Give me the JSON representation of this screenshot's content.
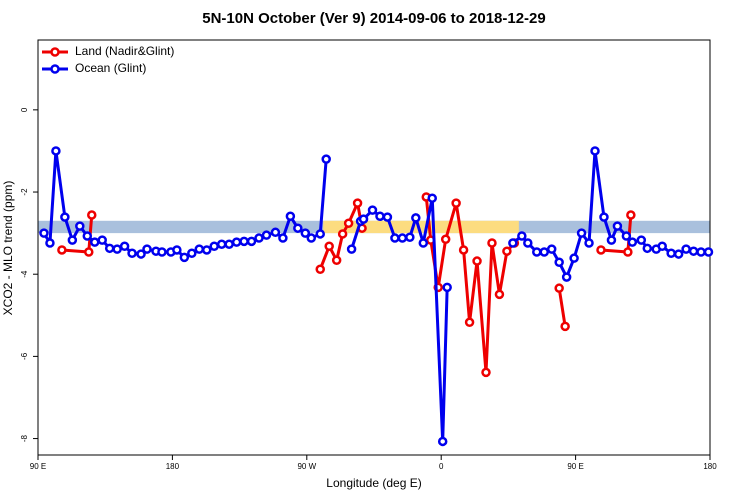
{
  "chart_data": {
    "type": "line",
    "title": "5N-10N October (Ver 9)   2014-09-06 to 2018-12-29",
    "x_label": "Longitude (deg E)",
    "y_label": "XCO2 - MLO trend (ppm)",
    "xlim": [
      90,
      540
    ],
    "xticks": [
      {
        "value": 90,
        "label": "90 E"
      },
      180,
      {
        "value": 270,
        "label": "90 W"
      },
      {
        "value": 360,
        "label": "0"
      },
      {
        "value": 450,
        "label": "90 E"
      },
      {
        "value": 540,
        "label": "180"
      }
    ],
    "ylim": [
      -8.4,
      1.7
    ],
    "yticks": [
      0,
      -2,
      -4,
      -6,
      -8
    ],
    "legend": "top-left",
    "band": {
      "low": -3.0,
      "high": -2.7,
      "color": "#a9c0dd",
      "highlights": [
        [
          281,
          412
        ]
      ],
      "highlight_color": "#fcdc80"
    },
    "series": [
      {
        "name": "Land (Nadir&Glint)",
        "color": "#ee0000",
        "x": [
          106,
          124,
          126,
          200,
          279,
          285,
          290,
          294,
          298,
          304,
          307,
          330,
          350,
          353,
          358,
          363,
          370,
          375,
          379,
          384,
          390,
          394,
          399,
          404,
          409,
          420,
          439,
          443,
          450,
          467,
          485,
          487
        ],
        "values": [
          -3.41,
          -3.46,
          -2.56,
          null,
          -3.88,
          -3.32,
          -3.66,
          -3.02,
          -2.76,
          -2.27,
          -2.88,
          null,
          -2.12,
          -3.17,
          -4.32,
          -3.15,
          -2.27,
          -3.41,
          -5.17,
          -3.68,
          -6.39,
          -3.24,
          -4.49,
          -3.44,
          -3.24,
          null,
          -4.34,
          -5.27,
          null,
          -3.41,
          -3.46,
          -2.56
        ]
      },
      {
        "name": "Ocean (Glint)",
        "color": "#0000ee",
        "x": [
          94,
          98,
          102,
          108,
          113,
          118,
          123,
          128,
          133,
          138,
          143,
          148,
          153,
          159,
          163,
          169,
          173,
          179,
          183,
          188,
          193,
          198,
          203,
          208,
          213,
          218,
          223,
          228,
          233,
          238,
          243,
          249,
          254,
          259,
          264,
          269,
          273,
          279,
          283,
          292,
          300,
          306,
          308,
          314,
          319,
          324,
          329,
          334,
          339,
          343,
          348,
          354,
          361,
          364,
          386,
          408,
          414,
          418,
          424,
          429,
          434,
          439,
          444,
          449,
          454,
          459,
          463,
          469,
          474,
          478,
          484,
          488,
          494,
          498,
          504,
          508,
          514,
          519,
          524,
          529,
          534,
          539
        ],
        "values": [
          -3.0,
          -3.24,
          -1.0,
          -2.61,
          -3.17,
          -2.83,
          -3.07,
          -3.22,
          -3.17,
          -3.37,
          -3.39,
          -3.32,
          -3.49,
          -3.51,
          -3.39,
          -3.44,
          -3.46,
          -3.46,
          -3.41,
          -3.59,
          -3.49,
          -3.39,
          -3.41,
          -3.32,
          -3.27,
          -3.27,
          -3.22,
          -3.2,
          -3.2,
          -3.12,
          -3.05,
          -2.98,
          -3.12,
          -2.59,
          -2.88,
          -3.0,
          -3.12,
          -3.02,
          -1.2,
          null,
          -3.39,
          -2.71,
          -2.66,
          -2.44,
          -2.59,
          -2.61,
          -3.12,
          -3.12,
          -3.1,
          -2.63,
          -3.24,
          -2.15,
          -8.07,
          -4.32,
          null,
          -3.24,
          -3.07,
          -3.24,
          -3.46,
          -3.46,
          -3.39,
          -3.71,
          -4.07,
          -3.61,
          -3.0,
          -3.24,
          -1.0,
          -2.61,
          -3.17,
          -2.83,
          -3.07,
          -3.22,
          -3.17,
          -3.37,
          -3.39,
          -3.32,
          -3.49,
          -3.51,
          -3.39,
          -3.44,
          -3.46,
          -3.46
        ]
      }
    ]
  }
}
